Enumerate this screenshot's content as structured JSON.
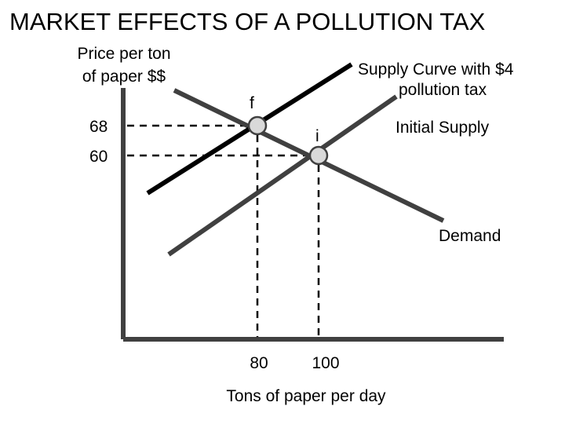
{
  "slide": {
    "title": "MARKET EFFECTS OF A POLLUTION TAX"
  },
  "diagram": {
    "y_axis_label_line1": "Price per ton",
    "y_axis_label_line2": "of paper $$",
    "x_axis_label": "Tons of paper per day",
    "price_ticks": [
      "68",
      "60"
    ],
    "quantity_ticks": [
      "80",
      "100"
    ],
    "curves": {
      "taxed_supply_label_line1": "Supply Curve  with $4",
      "taxed_supply_label_line2": "pollution tax",
      "initial_supply_label": "Initial Supply",
      "demand_label": "Demand"
    },
    "points": {
      "f_label": "f",
      "i_label": "i"
    },
    "colors": {
      "taxed_supply": "#000000",
      "initial_supply": "#404040",
      "demand": "#404040",
      "axes": "#404040",
      "marker_fill": "#d9d9d9",
      "guide_lines": "#000000"
    }
  }
}
